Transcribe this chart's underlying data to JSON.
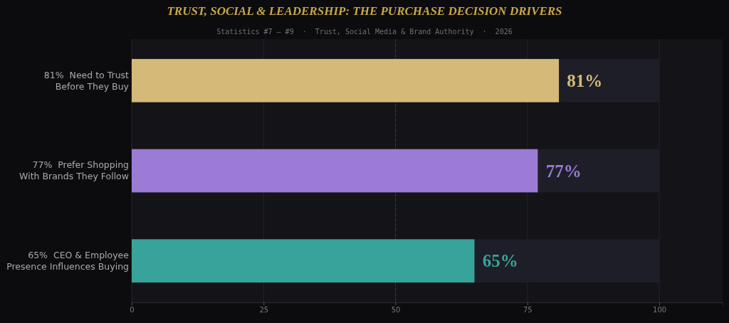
{
  "chart_data": {
    "type": "bar",
    "orientation": "horizontal",
    "stacked": true,
    "title": "TRUST, SOCIAL & LEADERSHIP: THE PURCHASE DECISION DRIVERS",
    "subtitle": "Statistics #7 – #9  ·  Trust, Social Media & Brand Authority  ·  2026",
    "categories": [
      "81%  Need to Trust\nBefore They Buy",
      "77%  Prefer Shopping\nWith Brands They Follow",
      "65%  CEO & Employee\nPresence Influences Buying"
    ],
    "series": [
      {
        "colors": [
          "#d4b978",
          "#9b7bd6",
          "#38a39a"
        ],
        "values": [
          81,
          77,
          65
        ],
        "value_labels": [
          "81%",
          "77%",
          "65%"
        ]
      },
      {
        "color": "#1e1e28",
        "values": [
          19,
          23,
          35
        ]
      }
    ],
    "xlim": [
      0,
      112
    ],
    "xticks": [
      0,
      25,
      50,
      75,
      100
    ],
    "grid": "x",
    "ref_lines": [
      {
        "axis": "x",
        "value": 50,
        "color": "#3a3a44",
        "line_style": "dashed"
      }
    ]
  }
}
